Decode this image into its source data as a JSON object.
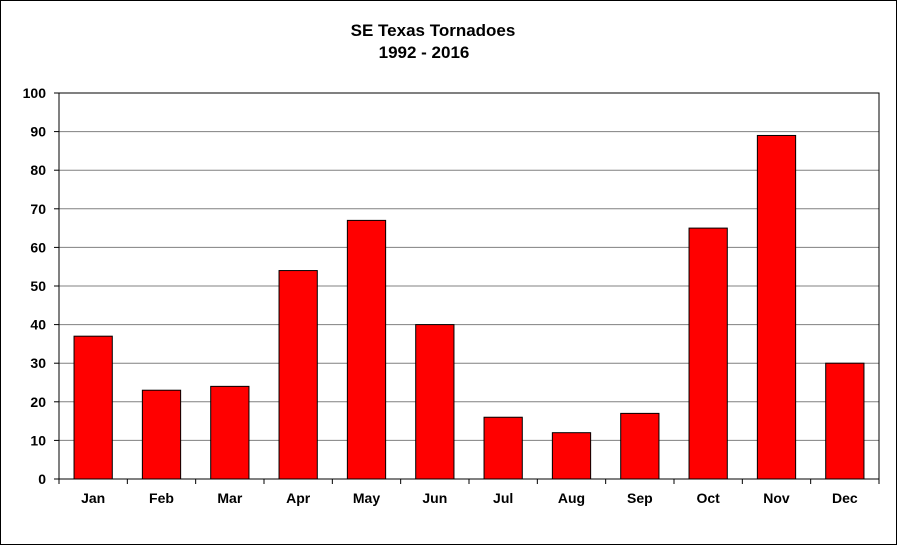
{
  "chart_data": {
    "type": "bar",
    "title": "SE Texas Tornadoes",
    "subtitle": "1992 - 2016",
    "xlabel": "",
    "ylabel": "",
    "categories": [
      "Jan",
      "Feb",
      "Mar",
      "Apr",
      "May",
      "Jun",
      "Jul",
      "Aug",
      "Sep",
      "Oct",
      "Nov",
      "Dec"
    ],
    "values": [
      37,
      23,
      24,
      54,
      67,
      40,
      16,
      12,
      17,
      65,
      89,
      30
    ],
    "ylim": [
      0,
      100
    ],
    "yticks": [
      0,
      10,
      20,
      30,
      40,
      50,
      60,
      70,
      80,
      90,
      100
    ],
    "grid": true,
    "legend": "none",
    "colors": {
      "bar": "#ff0000",
      "bar_edge": "#000000",
      "grid": "#808080",
      "axis": "#000000"
    }
  }
}
